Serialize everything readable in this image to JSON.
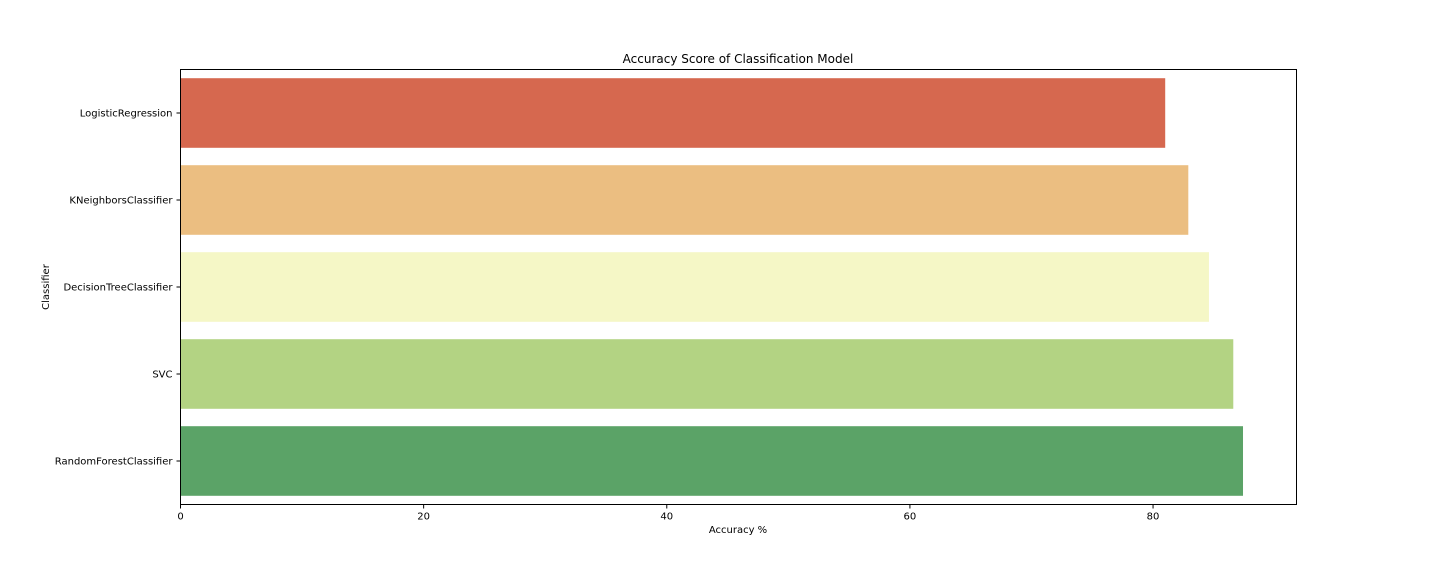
{
  "chart_data": {
    "type": "bar",
    "orientation": "horizontal",
    "title": "Accuracy Score of Classification Model",
    "xlabel": "Accuracy %",
    "ylabel": "Classifier",
    "categories": [
      "LogisticRegression",
      "KNeighborsClassifier",
      "DecisionTreeClassifier",
      "SVC",
      "RandomForestClassifier"
    ],
    "values": [
      81.0,
      82.9,
      84.6,
      86.6,
      87.4
    ],
    "colors": [
      "#d6684f",
      "#ebbe81",
      "#f5f7c6",
      "#b3d383",
      "#5ba367"
    ],
    "xlim": [
      0,
      91.8
    ],
    "xticks": [
      0,
      20,
      40,
      60,
      80
    ],
    "xtick_labels": [
      "0",
      "20",
      "40",
      "60",
      "80"
    ],
    "grid": false,
    "legend": "none"
  }
}
